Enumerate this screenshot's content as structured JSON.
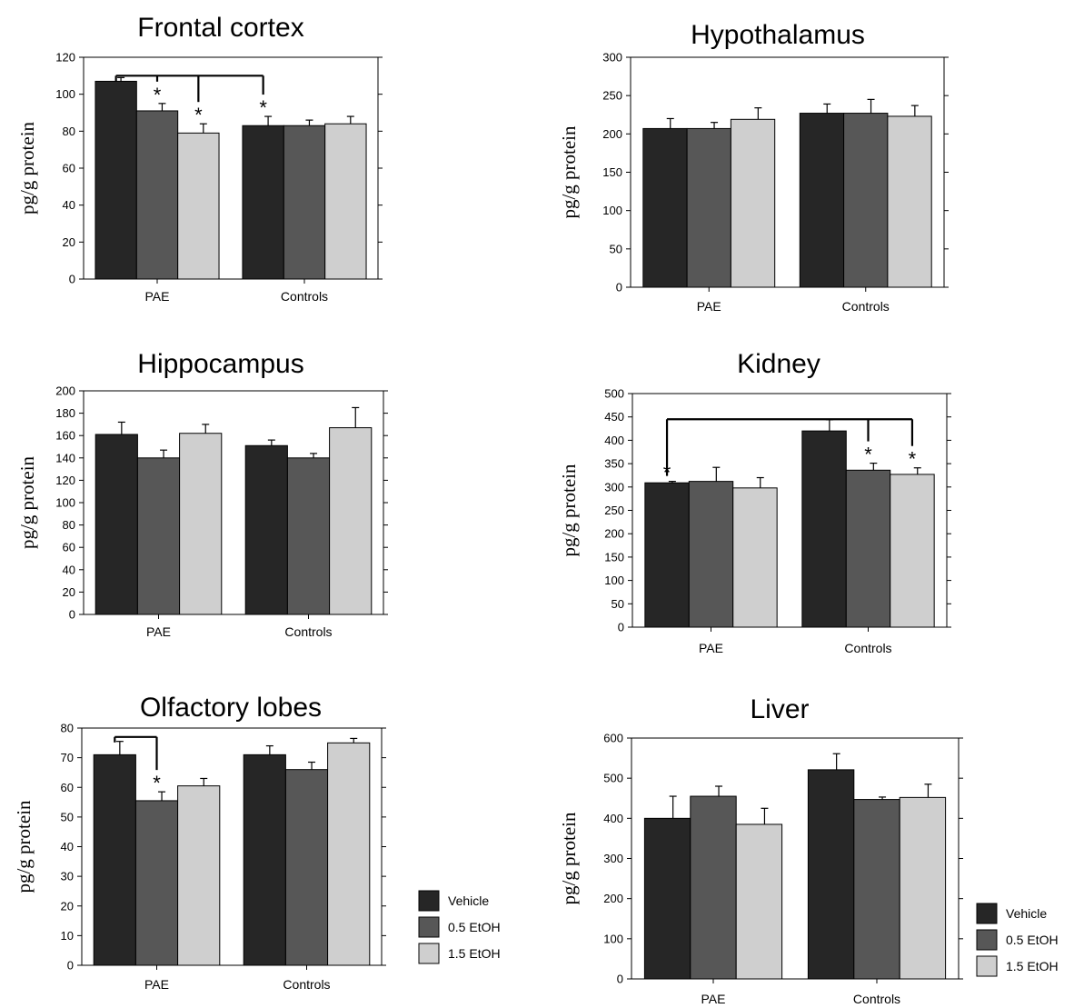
{
  "colors": {
    "Vehicle": "#262626",
    "0.5 EtOH": "#575757",
    "1.5 EtOH": "#cfcfcf",
    "axis": "#000000"
  },
  "legend": {
    "items": [
      {
        "label": "Vehicle",
        "color": "#262626"
      },
      {
        "label": "0.5 EtOH",
        "color": "#575757"
      },
      {
        "label": "1.5 EtOH",
        "color": "#cfcfcf"
      }
    ]
  },
  "chart_data": [
    {
      "id": "frontal",
      "type": "bar",
      "title": "Frontal cortex",
      "ylabel": "pg/g protein",
      "categories": [
        "PAE",
        "Controls"
      ],
      "ylim": [
        0,
        120
      ],
      "yticks": [
        0,
        20,
        40,
        60,
        80,
        100,
        120
      ],
      "series": [
        {
          "name": "Vehicle",
          "values": [
            107,
            83
          ],
          "errors": [
            2,
            5
          ]
        },
        {
          "name": "0.5 EtOH",
          "values": [
            91,
            83
          ],
          "errors": [
            4,
            3
          ]
        },
        {
          "name": "1.5 EtOH",
          "values": [
            79,
            84
          ],
          "errors": [
            5,
            4
          ]
        }
      ],
      "significance": [
        {
          "category": 0,
          "series": 1,
          "label": "*"
        },
        {
          "category": 0,
          "series": 2,
          "label": "*"
        },
        {
          "category": 1,
          "series": 0,
          "label": "*"
        }
      ],
      "brackets": [
        {
          "from": [
            0,
            0
          ],
          "to": [
            1,
            0
          ],
          "at": 110,
          "drops": [
            [
              0,
              1
            ],
            [
              0,
              2
            ]
          ]
        }
      ]
    },
    {
      "id": "hypothalamus",
      "type": "bar",
      "title": "Hypothalamus",
      "ylabel": "pg/g protein",
      "categories": [
        "PAE",
        "Controls"
      ],
      "ylim": [
        0,
        300
      ],
      "yticks": [
        0,
        50,
        100,
        150,
        200,
        250,
        300
      ],
      "series": [
        {
          "name": "Vehicle",
          "values": [
            207,
            227
          ],
          "errors": [
            13,
            12
          ]
        },
        {
          "name": "0.5 EtOH",
          "values": [
            207,
            227
          ],
          "errors": [
            8,
            18
          ]
        },
        {
          "name": "1.5 EtOH",
          "values": [
            219,
            223
          ],
          "errors": [
            15,
            14
          ]
        }
      ],
      "significance": [],
      "brackets": []
    },
    {
      "id": "hippocampus",
      "type": "bar",
      "title": "Hippocampus",
      "ylabel": "pg/g protein",
      "categories": [
        "PAE",
        "Controls"
      ],
      "ylim": [
        0,
        200
      ],
      "yticks": [
        0,
        20,
        40,
        60,
        80,
        100,
        120,
        140,
        160,
        180,
        200
      ],
      "series": [
        {
          "name": "Vehicle",
          "values": [
            161,
            151
          ],
          "errors": [
            11,
            5
          ]
        },
        {
          "name": "0.5 EtOH",
          "values": [
            140,
            140
          ],
          "errors": [
            7,
            4
          ]
        },
        {
          "name": "1.5 EtOH",
          "values": [
            162,
            167
          ],
          "errors": [
            8,
            18
          ]
        }
      ],
      "significance": [],
      "brackets": []
    },
    {
      "id": "kidney",
      "type": "bar",
      "title": "Kidney",
      "ylabel": "pg/g protein",
      "categories": [
        "PAE",
        "Controls"
      ],
      "ylim": [
        0,
        500
      ],
      "yticks": [
        0,
        50,
        100,
        150,
        200,
        250,
        300,
        350,
        400,
        450,
        500
      ],
      "series": [
        {
          "name": "Vehicle",
          "values": [
            309,
            420
          ],
          "errors": [
            3,
            24
          ]
        },
        {
          "name": "0.5 EtOH",
          "values": [
            312,
            336
          ],
          "errors": [
            30,
            15
          ]
        },
        {
          "name": "1.5 EtOH",
          "values": [
            298,
            327
          ],
          "errors": [
            22,
            14
          ]
        }
      ],
      "significance": [
        {
          "category": 0,
          "series": 0,
          "label": "*"
        },
        {
          "category": 1,
          "series": 1,
          "label": "*"
        },
        {
          "category": 1,
          "series": 2,
          "label": "*"
        }
      ],
      "brackets": [
        {
          "from": [
            0,
            0
          ],
          "to": [
            1,
            2
          ],
          "at": 445,
          "drops": [
            [
              1,
              1
            ]
          ]
        }
      ]
    },
    {
      "id": "olfactory",
      "type": "bar",
      "title": "Olfactory lobes",
      "ylabel": "pg/g protein",
      "categories": [
        "PAE",
        "Controls"
      ],
      "ylim": [
        0,
        80
      ],
      "yticks": [
        0,
        10,
        20,
        30,
        40,
        50,
        60,
        70,
        80
      ],
      "series": [
        {
          "name": "Vehicle",
          "values": [
            71,
            71
          ],
          "errors": [
            4.5,
            3
          ]
        },
        {
          "name": "0.5 EtOH",
          "values": [
            55.5,
            66
          ],
          "errors": [
            3,
            2.5
          ]
        },
        {
          "name": "1.5 EtOH",
          "values": [
            60.5,
            75
          ],
          "errors": [
            2.5,
            1.5
          ]
        }
      ],
      "significance": [
        {
          "category": 0,
          "series": 1,
          "label": "*"
        }
      ],
      "brackets": [
        {
          "from": [
            0,
            0
          ],
          "to": [
            0,
            1
          ],
          "at": 77,
          "drops": []
        }
      ]
    },
    {
      "id": "liver",
      "type": "bar",
      "title": "Liver",
      "ylabel": "pg/g protein",
      "categories": [
        "PAE",
        "Controls"
      ],
      "ylim": [
        0,
        600
      ],
      "yticks": [
        0,
        100,
        200,
        300,
        400,
        500,
        600
      ],
      "series": [
        {
          "name": "Vehicle",
          "values": [
            400,
            521
          ],
          "errors": [
            55,
            40
          ]
        },
        {
          "name": "0.5 EtOH",
          "values": [
            455,
            447
          ],
          "errors": [
            25,
            6
          ]
        },
        {
          "name": "1.5 EtOH",
          "values": [
            385,
            452
          ],
          "errors": [
            40,
            33
          ]
        }
      ],
      "significance": [],
      "brackets": []
    }
  ]
}
